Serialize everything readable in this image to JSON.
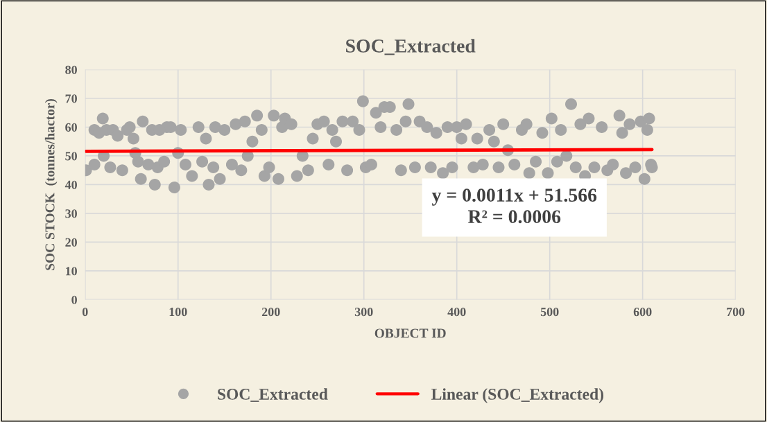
{
  "chart_data": {
    "type": "scatter",
    "title": "SOC_Extracted",
    "xlabel": "OBJECT ID",
    "ylabel": "SOC STOCK  (tonnes/hactor)",
    "xlim": [
      0,
      700
    ],
    "xticks": [
      0,
      100,
      200,
      300,
      400,
      500,
      600,
      700
    ],
    "ylim": [
      0,
      80
    ],
    "yticks": [
      0,
      10,
      20,
      30,
      40,
      50,
      60,
      70,
      80
    ],
    "grid": true,
    "legend": "bottom",
    "annotations": [
      "y = 0.0011x + 51.566",
      "R² = 0.0006"
    ],
    "series": [
      {
        "name": "SOC_Extracted",
        "marker": "circle",
        "color": "#a5a5a5",
        "x": [
          1,
          10,
          10,
          15,
          19,
          20,
          23,
          27,
          30,
          35,
          40,
          45,
          48,
          52,
          54,
          57,
          60,
          62,
          68,
          72,
          75,
          78,
          80,
          85,
          88,
          92,
          96,
          100,
          103,
          108,
          115,
          122,
          126,
          130,
          133,
          138,
          140,
          145,
          150,
          158,
          162,
          168,
          172,
          175,
          180,
          185,
          190,
          193,
          198,
          203,
          208,
          212,
          215,
          222,
          228,
          234,
          240,
          245,
          250,
          257,
          262,
          266,
          270,
          277,
          282,
          288,
          295,
          299,
          302,
          308,
          313,
          318,
          322,
          328,
          335,
          340,
          345,
          348,
          355,
          360,
          368,
          372,
          378,
          385,
          390,
          395,
          400,
          405,
          410,
          418,
          422,
          428,
          435,
          440,
          445,
          450,
          455,
          462,
          470,
          475,
          478,
          485,
          492,
          498,
          502,
          508,
          512,
          518,
          523,
          528,
          533,
          538,
          542,
          548,
          556,
          562,
          568,
          575,
          578,
          582,
          586,
          592,
          598,
          602,
          605,
          607,
          609,
          610
        ],
        "values": [
          45,
          47,
          59,
          58,
          63,
          50,
          59,
          46,
          59,
          57,
          45,
          59,
          60,
          56,
          51,
          48,
          42,
          62,
          47,
          59,
          40,
          46,
          59,
          48,
          60,
          60,
          39,
          51,
          59,
          47,
          43,
          60,
          48,
          56,
          40,
          46,
          60,
          42,
          59,
          47,
          61,
          45,
          62,
          50,
          55,
          64,
          59,
          43,
          46,
          64,
          42,
          60,
          63,
          61,
          43,
          50,
          45,
          56,
          61,
          62,
          47,
          59,
          55,
          62,
          45,
          62,
          59,
          69,
          46,
          47,
          65,
          60,
          67,
          67,
          59,
          45,
          62,
          68,
          46,
          62,
          60,
          46,
          58,
          44,
          60,
          46,
          60,
          56,
          61,
          46,
          56,
          47,
          59,
          55,
          46,
          61,
          52,
          47,
          59,
          61,
          44,
          48,
          58,
          44,
          63,
          48,
          59,
          50,
          68,
          46,
          61,
          43,
          63,
          46,
          60,
          45,
          47,
          64,
          58,
          44,
          61,
          46,
          62,
          42,
          59,
          63,
          47,
          46
        ]
      },
      {
        "name": "Linear (SOC_Extracted)",
        "type": "line",
        "color": "#ff0000",
        "marker": "none",
        "line_style": "solid",
        "x": [
          1,
          610
        ],
        "values": [
          51.6,
          52.2
        ]
      }
    ]
  }
}
